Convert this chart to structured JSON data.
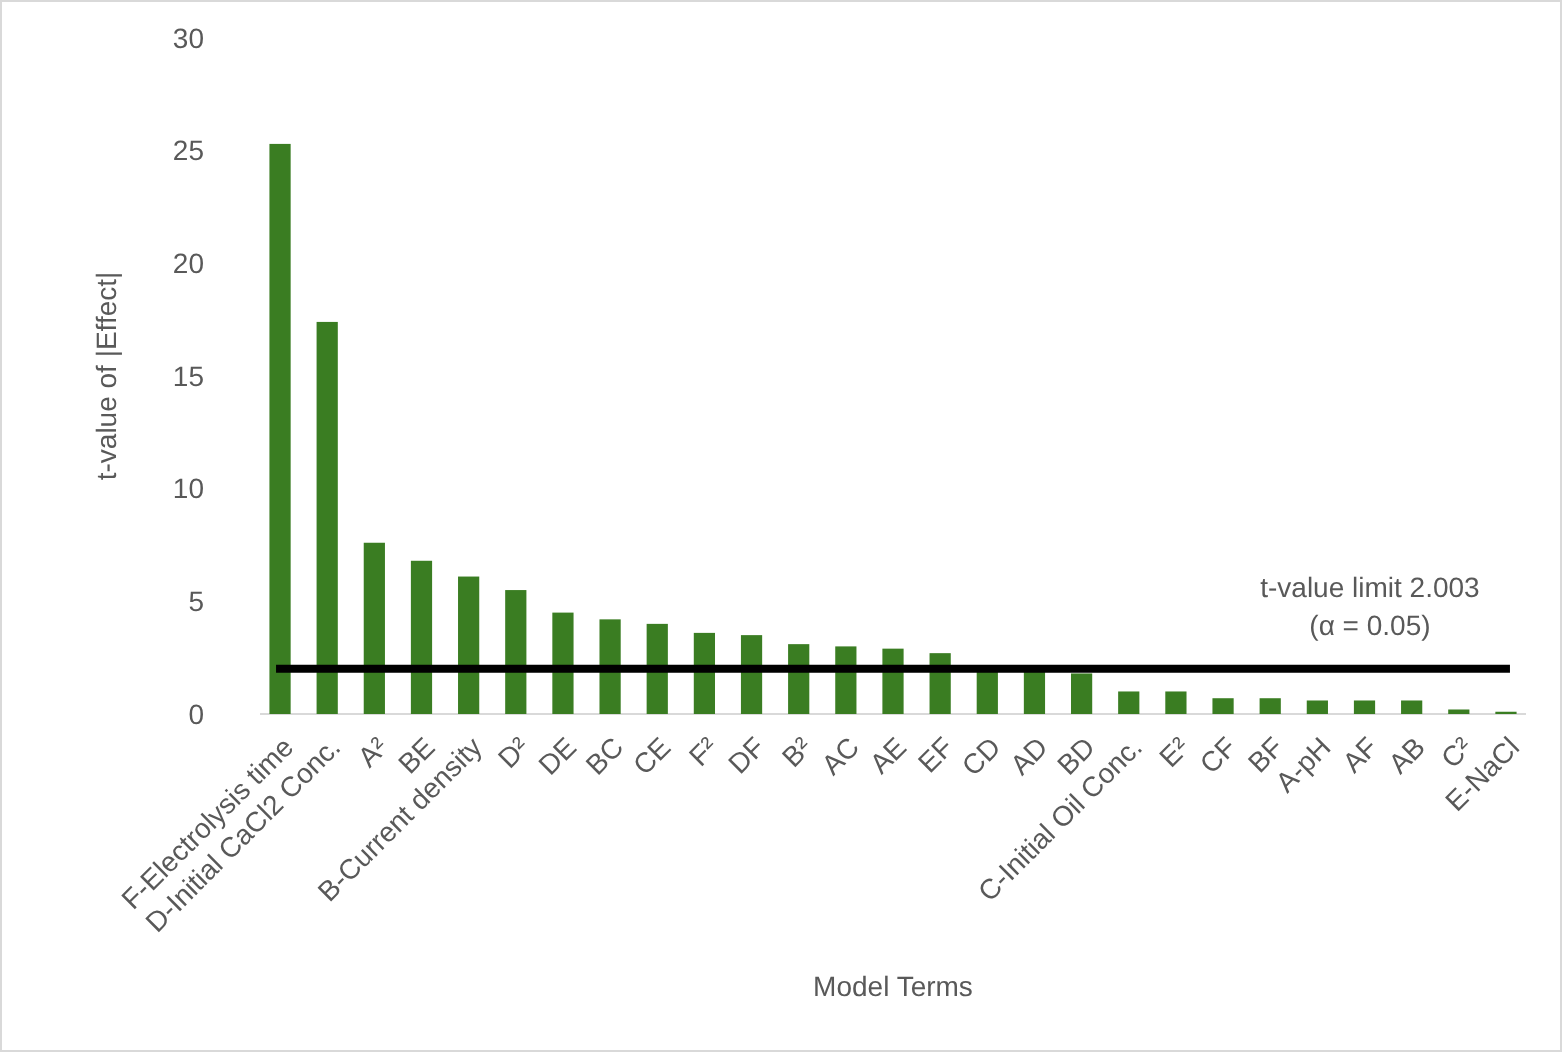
{
  "chart_data": {
    "type": "bar",
    "xlabel": "Model Terms",
    "ylabel": "t-value of |Effect|",
    "categories": [
      "F-Electrolysis time",
      "D-Initial CaCl2 Conc.",
      "A²",
      "BE",
      "B-Current density",
      "D²",
      "DE",
      "BC",
      "CE",
      "F²",
      "DF",
      "B²",
      "AC",
      "AE",
      "EF",
      "CD",
      "AD",
      "BD",
      "C-Initial Oil Conc.",
      "E²",
      "CF",
      "BF",
      "A-pH",
      "AF",
      "AB",
      "C²",
      "E-NaCl"
    ],
    "values": [
      25.3,
      17.4,
      7.6,
      6.8,
      6.1,
      5.5,
      4.5,
      4.2,
      4.0,
      3.6,
      3.5,
      3.1,
      3.0,
      2.9,
      2.7,
      2.0,
      1.9,
      1.8,
      1.0,
      1.0,
      0.7,
      0.7,
      0.6,
      0.6,
      0.6,
      0.2,
      0.1
    ],
    "color": "#3a7d22",
    "ylim": [
      0,
      30
    ],
    "yticks": [
      0,
      5,
      10,
      15,
      20,
      25,
      30
    ],
    "grid": false,
    "ref_lines": [
      {
        "axis": "y",
        "value": 2.003,
        "label": "t-value limit 2.003\n(α = 0.05)",
        "color": "#000000"
      }
    ]
  }
}
